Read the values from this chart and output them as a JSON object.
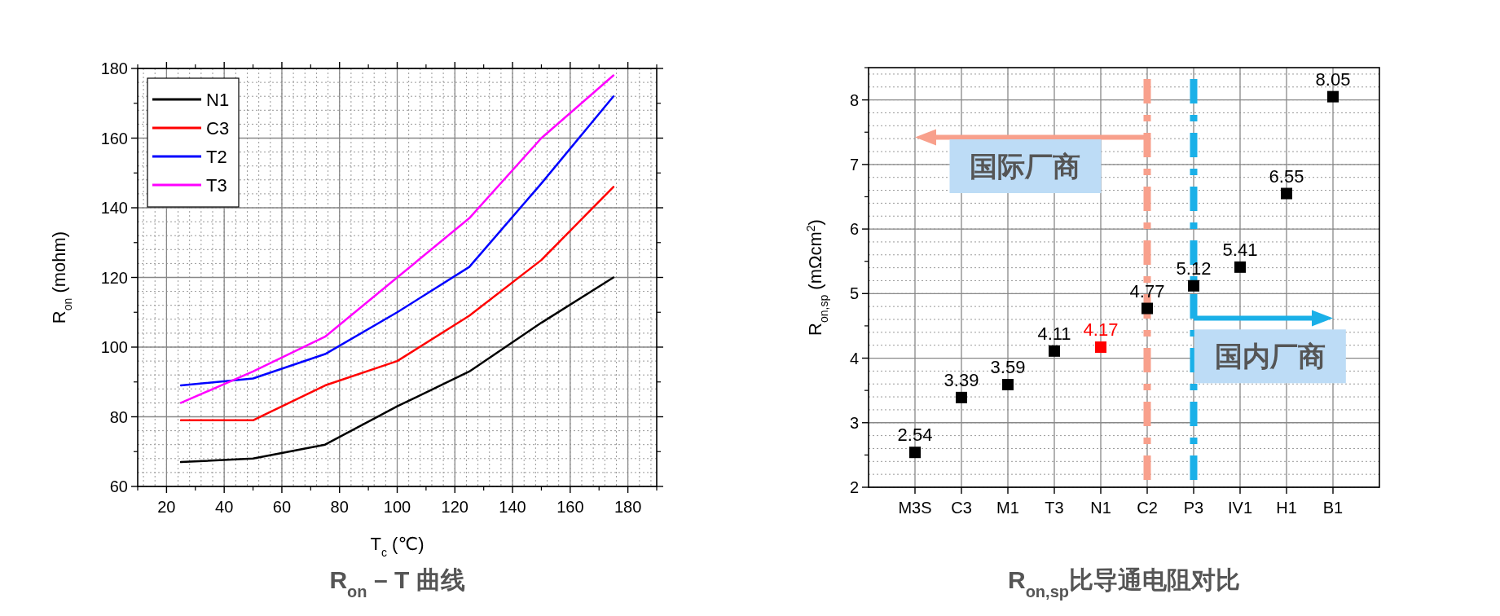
{
  "chart_data": [
    {
      "type": "line",
      "title": "R$_{on}$ – T 曲线",
      "xlabel": "T$_{c}$ (℃)",
      "ylabel": "R$_{on}$ (mohm)",
      "x": [
        25,
        50,
        75,
        100,
        125,
        150,
        175
      ],
      "series": [
        {
          "name": "N1",
          "color": "#000000",
          "values": [
            67,
            68,
            72,
            83,
            93,
            107,
            120
          ]
        },
        {
          "name": "C3",
          "color": "#ff0000",
          "values": [
            79,
            79,
            89,
            96,
            109,
            125,
            146
          ]
        },
        {
          "name": "T2",
          "color": "#0000ff",
          "values": [
            89,
            91,
            98,
            110,
            123,
            147,
            172
          ]
        },
        {
          "name": "T3",
          "color": "#ff00ff",
          "values": [
            84,
            93,
            103,
            120,
            137,
            160,
            178
          ]
        }
      ],
      "xlim": [
        10,
        190
      ],
      "xticks": [
        20,
        40,
        60,
        80,
        100,
        120,
        140,
        160,
        180
      ],
      "ylim": [
        60,
        180
      ],
      "yticks": [
        60,
        80,
        100,
        120,
        140,
        160,
        180
      ],
      "grid": true,
      "legend": "top left",
      "line_style": "solid"
    },
    {
      "type": "scatter",
      "title": "R$_{on,sp}$比导通电阻对比",
      "ylabel": "R$_{on,sp}$ (mΩcm$^{2}$)",
      "categories": [
        "M3S",
        "C3",
        "M1",
        "T3",
        "N1",
        "C2",
        "P3",
        "IV1",
        "H1",
        "B1"
      ],
      "values": [
        2.54,
        3.39,
        3.59,
        4.11,
        4.17,
        4.77,
        5.12,
        5.41,
        6.55,
        8.05
      ],
      "colors": [
        "#000000",
        "#000000",
        "#000000",
        "#000000",
        "#ff0000",
        "#000000",
        "#000000",
        "#000000",
        "#000000",
        "#000000"
      ],
      "ylim": [
        2,
        8.5
      ],
      "yticks": [
        2,
        3,
        4,
        5,
        6,
        7,
        8
      ],
      "grid": true,
      "marker": "square",
      "data_labels": true,
      "ref_lines": [
        {
          "axis": "x",
          "value": "C2",
          "color": "#f8a08c",
          "line_style": "dashed"
        },
        {
          "axis": "x",
          "value": "P3",
          "color": "#1ab0e8",
          "line_style": "dashed"
        }
      ],
      "annotations": [
        "国际厂商",
        "国内厂商"
      ]
    }
  ]
}
